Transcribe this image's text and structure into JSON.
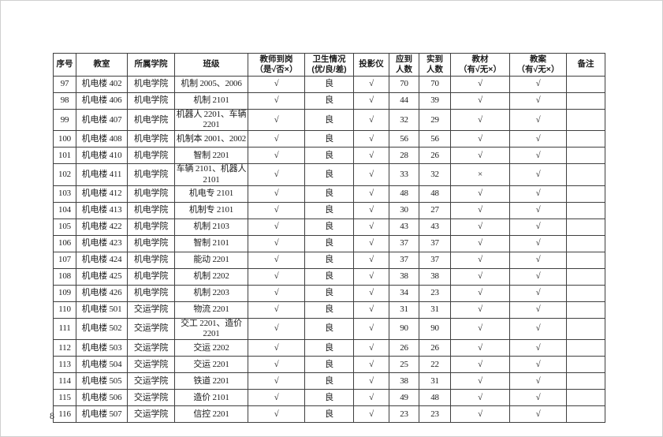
{
  "page": {
    "number": "8"
  },
  "table": {
    "headers": [
      {
        "key": "no",
        "line1": "序号",
        "line2": ""
      },
      {
        "key": "room",
        "line1": "教室",
        "line2": ""
      },
      {
        "key": "college",
        "line1": "所属学院",
        "line2": ""
      },
      {
        "key": "class",
        "line1": "班级",
        "line2": ""
      },
      {
        "key": "teacher",
        "line1": "教师到岗",
        "line2": "（是√否×）"
      },
      {
        "key": "hygiene",
        "line1": "卫生情况",
        "line2": "(优/良/差)"
      },
      {
        "key": "projector",
        "line1": "投影仪",
        "line2": ""
      },
      {
        "key": "expected",
        "line1": "应到",
        "line2": "人数"
      },
      {
        "key": "actual",
        "line1": "实到",
        "line2": "人数"
      },
      {
        "key": "textbook",
        "line1": "教材",
        "line2": "（有√无×）"
      },
      {
        "key": "plan",
        "line1": "教案",
        "line2": "（有√无×）"
      },
      {
        "key": "remark",
        "line1": "备注",
        "line2": ""
      }
    ],
    "rows": [
      {
        "no": "97",
        "room": "机电楼 402",
        "college": "机电学院",
        "class": "机制 2005、2006",
        "teacher": "√",
        "hygiene": "良",
        "projector": "√",
        "expected": "70",
        "actual": "70",
        "textbook": "√",
        "plan": "√",
        "remark": ""
      },
      {
        "no": "98",
        "room": "机电楼 406",
        "college": "机电学院",
        "class": "机制 2101",
        "teacher": "√",
        "hygiene": "良",
        "projector": "√",
        "expected": "44",
        "actual": "39",
        "textbook": "√",
        "plan": "√",
        "remark": ""
      },
      {
        "no": "99",
        "room": "机电楼 407",
        "college": "机电学院",
        "class": "机器人 2201、车辆 2201",
        "teacher": "√",
        "hygiene": "良",
        "projector": "√",
        "expected": "32",
        "actual": "29",
        "textbook": "√",
        "plan": "√",
        "remark": ""
      },
      {
        "no": "100",
        "room": "机电楼 408",
        "college": "机电学院",
        "class": "机制本 2001、2002",
        "teacher": "√",
        "hygiene": "良",
        "projector": "√",
        "expected": "56",
        "actual": "56",
        "textbook": "√",
        "plan": "√",
        "remark": ""
      },
      {
        "no": "101",
        "room": "机电楼 410",
        "college": "机电学院",
        "class": "智制 2201",
        "teacher": "√",
        "hygiene": "良",
        "projector": "√",
        "expected": "28",
        "actual": "26",
        "textbook": "√",
        "plan": "√",
        "remark": ""
      },
      {
        "no": "102",
        "room": "机电楼 411",
        "college": "机电学院",
        "class": "车辆 2101、机器人 2101",
        "teacher": "√",
        "hygiene": "良",
        "projector": "√",
        "expected": "33",
        "actual": "32",
        "textbook": "×",
        "plan": "√",
        "remark": ""
      },
      {
        "no": "103",
        "room": "机电楼 412",
        "college": "机电学院",
        "class": "机电专 2101",
        "teacher": "√",
        "hygiene": "良",
        "projector": "√",
        "expected": "48",
        "actual": "48",
        "textbook": "√",
        "plan": "√",
        "remark": ""
      },
      {
        "no": "104",
        "room": "机电楼 413",
        "college": "机电学院",
        "class": "机制专 2101",
        "teacher": "√",
        "hygiene": "良",
        "projector": "√",
        "expected": "30",
        "actual": "27",
        "textbook": "√",
        "plan": "√",
        "remark": ""
      },
      {
        "no": "105",
        "room": "机电楼 422",
        "college": "机电学院",
        "class": "机制 2103",
        "teacher": "√",
        "hygiene": "良",
        "projector": "√",
        "expected": "43",
        "actual": "43",
        "textbook": "√",
        "plan": "√",
        "remark": ""
      },
      {
        "no": "106",
        "room": "机电楼 423",
        "college": "机电学院",
        "class": "智制 2101",
        "teacher": "√",
        "hygiene": "良",
        "projector": "√",
        "expected": "37",
        "actual": "37",
        "textbook": "√",
        "plan": "√",
        "remark": ""
      },
      {
        "no": "107",
        "room": "机电楼 424",
        "college": "机电学院",
        "class": "能动 2201",
        "teacher": "√",
        "hygiene": "良",
        "projector": "√",
        "expected": "37",
        "actual": "37",
        "textbook": "√",
        "plan": "√",
        "remark": ""
      },
      {
        "no": "108",
        "room": "机电楼 425",
        "college": "机电学院",
        "class": "机制 2202",
        "teacher": "√",
        "hygiene": "良",
        "projector": "√",
        "expected": "38",
        "actual": "38",
        "textbook": "√",
        "plan": "√",
        "remark": ""
      },
      {
        "no": "109",
        "room": "机电楼 426",
        "college": "机电学院",
        "class": "机制 2203",
        "teacher": "√",
        "hygiene": "良",
        "projector": "√",
        "expected": "34",
        "actual": "23",
        "textbook": "√",
        "plan": "√",
        "remark": ""
      },
      {
        "no": "110",
        "room": "机电楼 501",
        "college": "交运学院",
        "class": "物流 2201",
        "teacher": "√",
        "hygiene": "良",
        "projector": "√",
        "expected": "31",
        "actual": "31",
        "textbook": "√",
        "plan": "√",
        "remark": ""
      },
      {
        "no": "111",
        "room": "机电楼 502",
        "college": "交运学院",
        "class": "交工 2201、造价 2201",
        "teacher": "√",
        "hygiene": "良",
        "projector": "√",
        "expected": "90",
        "actual": "90",
        "textbook": "√",
        "plan": "√",
        "remark": ""
      },
      {
        "no": "112",
        "room": "机电楼 503",
        "college": "交运学院",
        "class": "交运 2202",
        "teacher": "√",
        "hygiene": "良",
        "projector": "√",
        "expected": "26",
        "actual": "26",
        "textbook": "√",
        "plan": "√",
        "remark": ""
      },
      {
        "no": "113",
        "room": "机电楼 504",
        "college": "交运学院",
        "class": "交运 2201",
        "teacher": "√",
        "hygiene": "良",
        "projector": "√",
        "expected": "25",
        "actual": "22",
        "textbook": "√",
        "plan": "√",
        "remark": ""
      },
      {
        "no": "114",
        "room": "机电楼 505",
        "college": "交运学院",
        "class": "铁道 2201",
        "teacher": "√",
        "hygiene": "良",
        "projector": "√",
        "expected": "38",
        "actual": "31",
        "textbook": "√",
        "plan": "√",
        "remark": ""
      },
      {
        "no": "115",
        "room": "机电楼 506",
        "college": "交运学院",
        "class": "造价 2101",
        "teacher": "√",
        "hygiene": "良",
        "projector": "√",
        "expected": "49",
        "actual": "48",
        "textbook": "√",
        "plan": "√",
        "remark": ""
      },
      {
        "no": "116",
        "room": "机电楼 507",
        "college": "交运学院",
        "class": "信控 2201",
        "teacher": "√",
        "hygiene": "良",
        "projector": "√",
        "expected": "23",
        "actual": "23",
        "textbook": "√",
        "plan": "√",
        "remark": ""
      }
    ]
  }
}
